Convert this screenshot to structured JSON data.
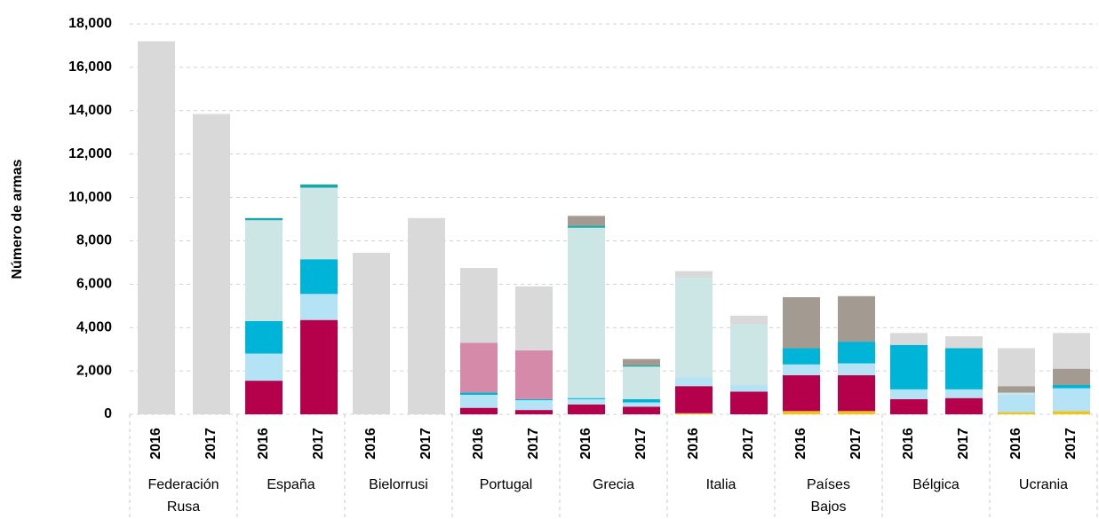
{
  "chart_data": {
    "type": "stacked_bar",
    "y_label": "Número de armas",
    "categories": [
      "2016",
      "2017",
      "2016",
      "2017",
      "2016",
      "2017",
      "2016",
      "2017",
      "2016",
      "2017",
      "2016",
      "2017",
      "2016",
      "2017",
      "2016",
      "2017",
      "2016",
      "2017"
    ],
    "groups": [
      [
        "Federación",
        "Rusa"
      ],
      [
        "España"
      ],
      [
        "Bielorrusi"
      ],
      [
        "Portugal"
      ],
      [
        "Grecia"
      ],
      [
        "Italia"
      ],
      [
        "Países",
        "Bajos"
      ],
      [
        "Bélgica"
      ],
      [
        "Ucrania"
      ]
    ],
    "series": [
      {
        "color": "#f0c419",
        "values": [
          0,
          0,
          0,
          0,
          0,
          0,
          0,
          0,
          0,
          0,
          50,
          0,
          150,
          150,
          0,
          0,
          100,
          150
        ]
      },
      {
        "color": "#b5004b",
        "values": [
          0,
          0,
          1550,
          4350,
          0,
          0,
          300,
          200,
          450,
          350,
          1250,
          1050,
          1650,
          1650,
          700,
          750,
          0,
          0
        ]
      },
      {
        "color": "#b3e3f5",
        "values": [
          0,
          0,
          1250,
          1200,
          0,
          0,
          600,
          450,
          250,
          200,
          400,
          300,
          500,
          550,
          450,
          400,
          800,
          1050
        ]
      },
      {
        "color": "#00b4d8",
        "values": [
          0,
          0,
          1500,
          1600,
          0,
          0,
          100,
          50,
          50,
          150,
          0,
          0,
          750,
          1000,
          2050,
          1900,
          0,
          150
        ]
      },
      {
        "color": "#d48aa8",
        "values": [
          0,
          0,
          0,
          0,
          0,
          0,
          2300,
          2250,
          0,
          0,
          0,
          0,
          0,
          0,
          0,
          0,
          0,
          0
        ]
      },
      {
        "color": "#cce6e6",
        "values": [
          0,
          0,
          4650,
          3300,
          0,
          0,
          0,
          0,
          7850,
          1500,
          4600,
          2800,
          0,
          0,
          0,
          0,
          100,
          0
        ]
      },
      {
        "color": "#1aa7a7",
        "values": [
          0,
          0,
          100,
          150,
          0,
          0,
          0,
          0,
          100,
          50,
          0,
          0,
          0,
          0,
          0,
          0,
          0,
          0
        ]
      },
      {
        "color": "#a39a91",
        "values": [
          0,
          0,
          0,
          0,
          0,
          0,
          0,
          0,
          450,
          300,
          0,
          0,
          2350,
          2100,
          0,
          0,
          300,
          750
        ]
      },
      {
        "color": "#d9d9d9",
        "values": [
          17200,
          13850,
          0,
          0,
          7450,
          9050,
          3450,
          2950,
          0,
          0,
          300,
          400,
          0,
          0,
          550,
          550,
          1750,
          1650
        ]
      }
    ],
    "ylim": [
      0,
      18000
    ],
    "yticks": [
      0,
      {
        "value": 2000,
        "label": "2,000"
      },
      {
        "value": 4000,
        "label": "4,000"
      },
      {
        "value": 6000,
        "label": "6,000"
      },
      {
        "value": 8000,
        "label": "8,000"
      },
      {
        "value": 10000,
        "label": "10,000"
      },
      {
        "value": 12000,
        "label": "12,000"
      },
      {
        "value": 14000,
        "label": "14,000"
      },
      {
        "value": 16000,
        "label": "16,000"
      },
      {
        "value": 18000,
        "label": "18,000"
      }
    ],
    "grid": true
  }
}
